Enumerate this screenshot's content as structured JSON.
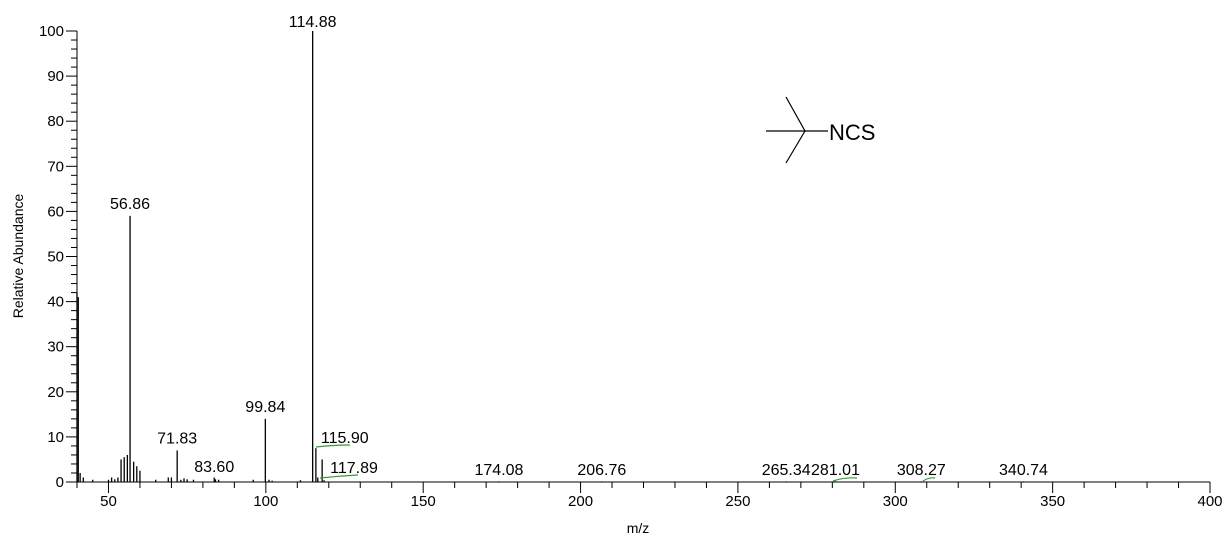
{
  "header": {
    "text": ""
  },
  "chart_data": {
    "type": "bar",
    "xlabel": "m/z",
    "ylabel": "Relative Abundance",
    "xlim": [
      40,
      400
    ],
    "ylim": [
      0,
      100
    ],
    "x_ticks": [
      "50",
      "100",
      "150",
      "200",
      "250",
      "300",
      "350",
      "400"
    ],
    "y_ticks": [
      "0",
      "10",
      "20",
      "30",
      "40",
      "50",
      "60",
      "70",
      "80",
      "90",
      "100"
    ],
    "peaks": [
      {
        "x": 40.0,
        "y": 42
      },
      {
        "x": 40.4,
        "y": 41
      },
      {
        "x": 41.0,
        "y": 2
      },
      {
        "x": 42.0,
        "y": 1
      },
      {
        "x": 45.0,
        "y": 0.5
      },
      {
        "x": 50.0,
        "y": 0.5
      },
      {
        "x": 51.0,
        "y": 1
      },
      {
        "x": 52.0,
        "y": 0.6
      },
      {
        "x": 53.0,
        "y": 1
      },
      {
        "x": 54.0,
        "y": 5
      },
      {
        "x": 55.0,
        "y": 5.5
      },
      {
        "x": 56.0,
        "y": 6
      },
      {
        "x": 56.86,
        "y": 59
      },
      {
        "x": 58.0,
        "y": 4.5
      },
      {
        "x": 59.0,
        "y": 3.5
      },
      {
        "x": 60.0,
        "y": 2.5
      },
      {
        "x": 65.0,
        "y": 0.5
      },
      {
        "x": 69.0,
        "y": 1
      },
      {
        "x": 70.0,
        "y": 1
      },
      {
        "x": 71.83,
        "y": 7
      },
      {
        "x": 73.0,
        "y": 0.5
      },
      {
        "x": 74.0,
        "y": 0.8
      },
      {
        "x": 75.0,
        "y": 0.6
      },
      {
        "x": 77.0,
        "y": 0.5
      },
      {
        "x": 83.6,
        "y": 1
      },
      {
        "x": 84.0,
        "y": 0.6
      },
      {
        "x": 85.0,
        "y": 0.5
      },
      {
        "x": 96.0,
        "y": 0.5
      },
      {
        "x": 99.84,
        "y": 14
      },
      {
        "x": 101.0,
        "y": 0.5
      },
      {
        "x": 102.0,
        "y": 0.3
      },
      {
        "x": 111.0,
        "y": 0.4
      },
      {
        "x": 114.88,
        "y": 100
      },
      {
        "x": 115.9,
        "y": 7.5
      },
      {
        "x": 116.5,
        "y": 1
      },
      {
        "x": 117.89,
        "y": 5
      },
      {
        "x": 118.5,
        "y": 0.4
      },
      {
        "x": 174.08,
        "y": 0.15
      },
      {
        "x": 206.76,
        "y": 0.15
      },
      {
        "x": 265.34,
        "y": 0.15
      },
      {
        "x": 281.01,
        "y": 0.15
      },
      {
        "x": 308.27,
        "y": 0.15
      },
      {
        "x": 340.74,
        "y": 0.15
      }
    ],
    "peak_labels": [
      {
        "x": 56.86,
        "y": 59,
        "text": "56.86"
      },
      {
        "x": 71.83,
        "y": 7,
        "text": "71.83"
      },
      {
        "x": 83.6,
        "y": 1,
        "text": "83.60"
      },
      {
        "x": 99.84,
        "y": 14,
        "text": "99.84"
      },
      {
        "x": 114.88,
        "y": 100,
        "text": "114.88"
      },
      {
        "x": 115.9,
        "y": 7.5,
        "text": "115.90"
      },
      {
        "x": 117.89,
        "y": 5,
        "text": "117.89"
      },
      {
        "x": 174.08,
        "y": 0.15,
        "text": "174.08"
      },
      {
        "x": 206.76,
        "y": 0.15,
        "text": "206.76"
      },
      {
        "x": 265.34,
        "y": 0.15,
        "text": "265.34"
      },
      {
        "x": 281.01,
        "y": 0.15,
        "text": "281.01"
      },
      {
        "x": 308.27,
        "y": 0.15,
        "text": "308.27"
      },
      {
        "x": 340.74,
        "y": 0.15,
        "text": "340.74"
      }
    ],
    "structure_label": "NCS",
    "colors": {
      "axis": "#000000",
      "peak": "#000000",
      "leader": "#3a9a3a",
      "header": "#1a1aa6"
    }
  }
}
